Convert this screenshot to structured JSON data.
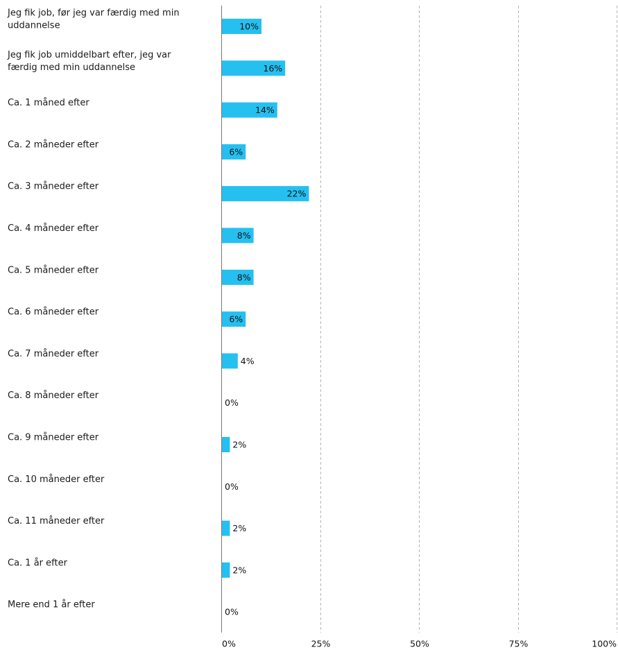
{
  "chart_data": {
    "type": "bar",
    "orientation": "horizontal",
    "categories": [
      [
        "Jeg fik job, før jeg var færdig med min",
        "uddannelse"
      ],
      [
        "Jeg fik job umiddelbart efter, jeg var",
        "færdig med min uddannelse"
      ],
      [
        "Ca. 1 måned efter"
      ],
      [
        "Ca. 2 måneder efter"
      ],
      [
        "Ca. 3 måneder efter"
      ],
      [
        "Ca. 4 måneder efter"
      ],
      [
        "Ca. 5 måneder efter"
      ],
      [
        "Ca. 6 måneder efter"
      ],
      [
        "Ca. 7 måneder efter"
      ],
      [
        "Ca. 8 måneder efter"
      ],
      [
        "Ca. 9 måneder efter"
      ],
      [
        "Ca. 10 måneder efter"
      ],
      [
        "Ca. 11 måneder efter"
      ],
      [
        "Ca. 1 år efter"
      ],
      [
        "Mere end 1 år efter"
      ]
    ],
    "values": [
      10,
      16,
      14,
      6,
      22,
      8,
      8,
      6,
      4,
      0,
      2,
      0,
      2,
      2,
      0
    ],
    "value_labels": [
      "10%",
      "16%",
      "14%",
      "6%",
      "22%",
      "8%",
      "8%",
      "6%",
      "4%",
      "0%",
      "2%",
      "0%",
      "2%",
      "2%",
      "0%"
    ],
    "x_ticks": [
      0,
      25,
      50,
      75,
      100
    ],
    "x_tick_labels": [
      "0%",
      "25%",
      "50%",
      "75%",
      "100%"
    ],
    "xlim": [
      0,
      100
    ],
    "grid": "vertical dashed",
    "bar_color": "#25c0f0",
    "title": "",
    "xlabel": "",
    "ylabel": ""
  }
}
